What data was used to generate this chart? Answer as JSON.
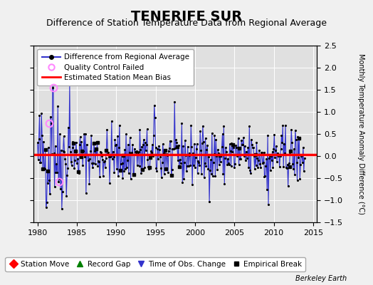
{
  "title": "TENERIFE SUR",
  "subtitle": "Difference of Station Temperature Data from Regional Average",
  "ylabel": "Monthly Temperature Anomaly Difference (°C)",
  "xlim": [
    1979.5,
    2015.5
  ],
  "ylim": [
    -1.5,
    2.5
  ],
  "yticks": [
    -1.5,
    -1,
    -0.5,
    0,
    0.5,
    1,
    1.5,
    2,
    2.5
  ],
  "xticks": [
    1980,
    1985,
    1990,
    1995,
    2000,
    2005,
    2010,
    2015
  ],
  "bias_value": 0.03,
  "plot_bg_color": "#e0e0e0",
  "fig_bg_color": "#f0f0f0",
  "line_color": "#3333cc",
  "bias_color": "#ff0000",
  "qc_color": "#ff88ff",
  "title_fontsize": 14,
  "subtitle_fontsize": 9,
  "tick_fontsize": 8,
  "legend_fontsize": 7.5,
  "berkeley_earth_text": "Berkeley Earth",
  "seed": 42,
  "n_points": 408,
  "start_year": 1980.0,
  "end_year": 2013.9
}
